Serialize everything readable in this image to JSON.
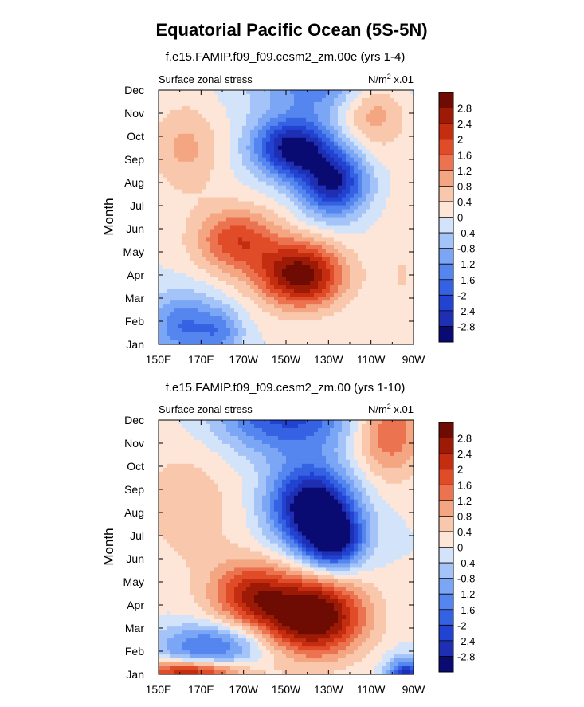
{
  "title": "Equatorial Pacific Ocean (5S-5N)",
  "chart_data": [
    {
      "type": "heatmap",
      "title": "f.e15.FAMIP.f09_f09.cesm2_zm.00e (yrs 1-4)",
      "left_label": "Surface zonal stress",
      "units_label": {
        "base": "N/m",
        "sup": "2",
        "suffix": " x.01"
      },
      "ylabel": "Month",
      "x_ticks": [
        "150E",
        "170E",
        "170W",
        "150W",
        "130W",
        "110W",
        "90W"
      ],
      "y_ticks": [
        "Jan",
        "Feb",
        "Mar",
        "Apr",
        "May",
        "Jun",
        "Jul",
        "Aug",
        "Sep",
        "Oct",
        "Nov",
        "Dec"
      ],
      "colorbar_labels": [
        "2.8",
        "2.4",
        "2",
        "1.6",
        "1.2",
        "0.8",
        "0.4",
        "0",
        "-0.4",
        "-0.8",
        "-1.2",
        "-1.6",
        "-2",
        "-2.4",
        "-2.8"
      ],
      "value_range": [
        -3.2,
        3.2
      ],
      "features": [
        {
          "lon": 232,
          "month": 11.5,
          "value": -1.8,
          "sx": 24,
          "sy": 1.2
        },
        {
          "lon": 213,
          "month": 8.5,
          "value": -3.0,
          "sx": 13,
          "sy": 0.9
        },
        {
          "lon": 232,
          "month": 7.0,
          "value": -2.8,
          "sx": 11,
          "sy": 1.0
        },
        {
          "lon": 250,
          "month": 10.5,
          "value": 1.6,
          "sx": 12,
          "sy": 1.3
        },
        {
          "lon": 163,
          "month": 8.5,
          "value": 0.9,
          "sx": 12,
          "sy": 1.4
        },
        {
          "lon": 217,
          "month": 3.0,
          "value": 3.1,
          "sx": 14,
          "sy": 1.0
        },
        {
          "lon": 187,
          "month": 4.5,
          "value": 1.9,
          "sx": 14,
          "sy": 1.0
        },
        {
          "lon": 162,
          "month": 0.8,
          "value": -1.6,
          "sx": 12,
          "sy": 1.0
        },
        {
          "lon": 180,
          "month": 0.5,
          "value": -1.0,
          "sx": 7,
          "sy": 0.7
        },
        {
          "lon": 265,
          "month": 3.0,
          "value": 0.4,
          "sx": 10,
          "sy": 2.5
        }
      ]
    },
    {
      "type": "heatmap",
      "title": "f.e15.FAMIP.f09_f09.cesm2_zm.00 (yrs 1-10)",
      "left_label": "Surface zonal stress",
      "units_label": {
        "base": "N/m",
        "sup": "2",
        "suffix": " x.01"
      },
      "ylabel": "Month",
      "x_ticks": [
        "150E",
        "170E",
        "170W",
        "150W",
        "130W",
        "110W",
        "90W"
      ],
      "y_ticks": [
        "Jan",
        "Feb",
        "Mar",
        "Apr",
        "May",
        "Jun",
        "Jul",
        "Aug",
        "Sep",
        "Oct",
        "Nov",
        "Dec"
      ],
      "colorbar_labels": [
        "2.8",
        "2.4",
        "2",
        "1.6",
        "1.2",
        "0.8",
        "0.4",
        "0",
        "-0.4",
        "-0.8",
        "-1.2",
        "-1.6",
        "-2",
        "-2.4",
        "-2.8"
      ],
      "value_range": [
        -3.2,
        3.2
      ],
      "features": [
        {
          "lon": 210,
          "month": 11.3,
          "value": -2.2,
          "sx": 24,
          "sy": 1.3
        },
        {
          "lon": 222,
          "month": 7.3,
          "value": -3.4,
          "sx": 14,
          "sy": 1.2
        },
        {
          "lon": 232,
          "month": 5.8,
          "value": -2.8,
          "sx": 10,
          "sy": 0.9
        },
        {
          "lon": 258,
          "month": 10.5,
          "value": 1.7,
          "sx": 12,
          "sy": 1.4
        },
        {
          "lon": 165,
          "month": 7.5,
          "value": 0.6,
          "sx": 20,
          "sy": 2.5
        },
        {
          "lon": 222,
          "month": 2.5,
          "value": 3.6,
          "sx": 17,
          "sy": 1.2
        },
        {
          "lon": 193,
          "month": 3.5,
          "value": 2.0,
          "sx": 13,
          "sy": 1.0
        },
        {
          "lon": 175,
          "month": 1.2,
          "value": -1.7,
          "sx": 18,
          "sy": 0.7
        },
        {
          "lon": 165,
          "month": 0.1,
          "value": 2.5,
          "sx": 18,
          "sy": 0.35
        },
        {
          "lon": 266,
          "month": -0.2,
          "value": -2.8,
          "sx": 6,
          "sy": 0.6
        }
      ]
    }
  ],
  "colors": {
    "palette": [
      "#0a0a73",
      "#1f2fb3",
      "#2243d1",
      "#3562e3",
      "#5585ee",
      "#7aa6f5",
      "#a4c3f8",
      "#d2e3fa",
      "#fde6d8",
      "#f9c8ac",
      "#f4a582",
      "#ec7350",
      "#e04b28",
      "#c52d10",
      "#9c1a06",
      "#6e0b02"
    ]
  }
}
